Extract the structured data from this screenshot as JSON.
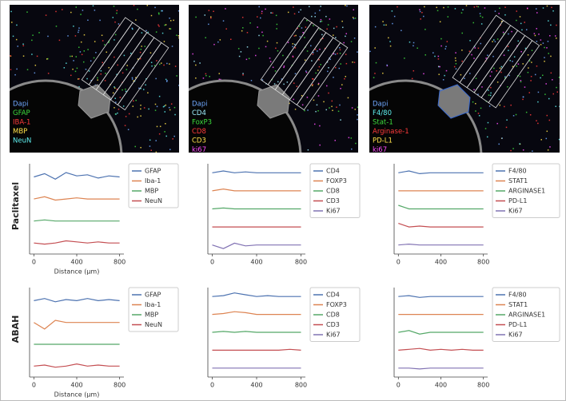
{
  "row_labels": [
    "Paclitaxel",
    "ABAH"
  ],
  "images": [
    {
      "legend": [
        {
          "text": "Dapi",
          "color": "#6fa8ff"
        },
        {
          "text": "GFAP",
          "color": "#3ddc3d"
        },
        {
          "text": "IBA-1",
          "color": "#ff3b3b"
        },
        {
          "text": "MBP",
          "color": "#ffe14a"
        },
        {
          "text": "NeuN",
          "color": "#5ff0f0"
        }
      ]
    },
    {
      "legend": [
        {
          "text": "Dapi",
          "color": "#6fa8ff"
        },
        {
          "text": "CD4",
          "color": "#9ff0ff"
        },
        {
          "text": "FoxP3",
          "color": "#3ddc3d"
        },
        {
          "text": "CD8",
          "color": "#ff3b3b"
        },
        {
          "text": "CD3",
          "color": "#ffe14a"
        },
        {
          "text": "ki67",
          "color": "#ff4dff"
        }
      ]
    },
    {
      "legend": [
        {
          "text": "Dapi",
          "color": "#6fa8ff"
        },
        {
          "text": "F4/80",
          "color": "#5ff0f0"
        },
        {
          "text": "Stat-1",
          "color": "#3ddc3d"
        },
        {
          "text": "Arginase-1",
          "color": "#ff3b3b"
        },
        {
          "text": "PD-L1",
          "color": "#ffe14a"
        },
        {
          "text": "ki67",
          "color": "#ff4dff"
        }
      ]
    }
  ],
  "chart_data": [
    {
      "type": "line",
      "x": [
        0,
        100,
        200,
        300,
        400,
        500,
        600,
        700,
        800
      ],
      "xlim": [
        -40,
        840
      ],
      "xticks": [
        0,
        400,
        800
      ],
      "ylim": [
        0.5,
        4.6
      ],
      "xlabel": "Distance (μm)",
      "series": [
        {
          "name": "GFAP",
          "color": "#4c72b0",
          "values": [
            4.0,
            4.15,
            3.9,
            4.2,
            4.05,
            4.1,
            3.95,
            4.05,
            4.0
          ]
        },
        {
          "name": "Iba-1",
          "color": "#dd8452",
          "values": [
            3.0,
            3.1,
            2.95,
            3.0,
            3.05,
            3.0,
            3.0,
            3.0,
            3.0
          ]
        },
        {
          "name": "MBP",
          "color": "#55a868",
          "values": [
            2.0,
            2.05,
            2.0,
            2.0,
            2.0,
            2.0,
            2.0,
            2.0,
            2.0
          ]
        },
        {
          "name": "NeuN",
          "color": "#c44e52",
          "values": [
            1.0,
            0.95,
            1.0,
            1.1,
            1.05,
            1.0,
            1.05,
            1.0,
            1.0
          ]
        }
      ]
    },
    {
      "type": "line",
      "x": [
        0,
        100,
        200,
        300,
        400,
        500,
        600,
        700,
        800
      ],
      "xlim": [
        -40,
        840
      ],
      "xticks": [
        0,
        400,
        800
      ],
      "ylim": [
        0.5,
        5.5
      ],
      "series": [
        {
          "name": "CD4",
          "color": "#4c72b0",
          "values": [
            5.0,
            5.1,
            5.0,
            5.05,
            5.0,
            5.0,
            5.0,
            5.0,
            5.0
          ]
        },
        {
          "name": "FOXP3",
          "color": "#dd8452",
          "values": [
            4.0,
            4.1,
            4.0,
            4.0,
            4.0,
            4.0,
            4.0,
            4.0,
            4.0
          ]
        },
        {
          "name": "CD8",
          "color": "#55a868",
          "values": [
            3.0,
            3.05,
            3.0,
            3.0,
            3.0,
            3.0,
            3.0,
            3.0,
            3.0
          ]
        },
        {
          "name": "CD3",
          "color": "#c44e52",
          "values": [
            2.0,
            2.0,
            2.0,
            2.0,
            2.0,
            2.0,
            2.0,
            2.0,
            2.0
          ]
        },
        {
          "name": "Ki67",
          "color": "#8172b3",
          "values": [
            1.0,
            0.8,
            1.1,
            0.95,
            1.0,
            1.0,
            1.0,
            1.0,
            1.0
          ]
        }
      ]
    },
    {
      "type": "line",
      "x": [
        0,
        100,
        200,
        300,
        400,
        500,
        600,
        700,
        800
      ],
      "xlim": [
        -40,
        840
      ],
      "xticks": [
        0,
        400,
        800
      ],
      "ylim": [
        0.5,
        5.5
      ],
      "series": [
        {
          "name": "F4/80",
          "color": "#4c72b0",
          "values": [
            5.0,
            5.1,
            4.95,
            5.0,
            5.0,
            5.0,
            5.0,
            5.0,
            5.0
          ]
        },
        {
          "name": "STAT1",
          "color": "#dd8452",
          "values": [
            4.0,
            4.0,
            4.0,
            4.0,
            4.0,
            4.0,
            4.0,
            4.0,
            4.0
          ]
        },
        {
          "name": "ARGINASE1",
          "color": "#55a868",
          "values": [
            3.2,
            3.0,
            3.0,
            3.0,
            3.0,
            3.0,
            3.0,
            3.0,
            3.0
          ]
        },
        {
          "name": "PD-L1",
          "color": "#c44e52",
          "values": [
            2.2,
            2.0,
            2.05,
            2.0,
            2.0,
            2.0,
            2.0,
            2.0,
            2.0
          ]
        },
        {
          "name": "Ki67",
          "color": "#8172b3",
          "values": [
            1.0,
            1.05,
            1.0,
            1.0,
            1.0,
            1.0,
            1.0,
            1.0,
            1.0
          ]
        }
      ]
    },
    {
      "type": "line",
      "x": [
        0,
        100,
        200,
        300,
        400,
        500,
        600,
        700,
        800
      ],
      "xlim": [
        -40,
        840
      ],
      "xticks": [
        0,
        400,
        800
      ],
      "ylim": [
        0.5,
        4.6
      ],
      "xlabel": "Distance (μm)",
      "series": [
        {
          "name": "GFAP",
          "color": "#4c72b0",
          "values": [
            4.0,
            4.1,
            3.95,
            4.05,
            4.0,
            4.1,
            4.0,
            4.05,
            4.0
          ]
        },
        {
          "name": "Iba-1",
          "color": "#dd8452",
          "values": [
            3.0,
            2.7,
            3.1,
            3.0,
            3.0,
            3.0,
            3.0,
            3.0,
            3.0
          ]
        },
        {
          "name": "MBP",
          "color": "#55a868",
          "values": [
            2.0,
            2.0,
            2.0,
            2.0,
            2.0,
            2.0,
            2.0,
            2.0,
            2.0
          ]
        },
        {
          "name": "NeuN",
          "color": "#c44e52",
          "values": [
            1.0,
            1.05,
            0.95,
            1.0,
            1.1,
            1.0,
            1.05,
            1.0,
            1.0
          ]
        }
      ]
    },
    {
      "type": "line",
      "x": [
        0,
        100,
        200,
        300,
        400,
        500,
        600,
        700,
        800
      ],
      "xlim": [
        -40,
        840
      ],
      "xticks": [
        0,
        400,
        800
      ],
      "ylim": [
        0.5,
        5.5
      ],
      "series": [
        {
          "name": "CD4",
          "color": "#4c72b0",
          "values": [
            5.0,
            5.05,
            5.2,
            5.1,
            5.0,
            5.05,
            5.0,
            5.0,
            5.0
          ]
        },
        {
          "name": "FOXP3",
          "color": "#dd8452",
          "values": [
            4.0,
            4.05,
            4.15,
            4.1,
            4.0,
            4.0,
            4.0,
            4.0,
            4.0
          ]
        },
        {
          "name": "CD8",
          "color": "#55a868",
          "values": [
            3.0,
            3.05,
            3.0,
            3.05,
            3.0,
            3.0,
            3.0,
            3.0,
            3.0
          ]
        },
        {
          "name": "CD3",
          "color": "#c44e52",
          "values": [
            2.0,
            2.0,
            2.0,
            2.0,
            2.0,
            2.0,
            2.0,
            2.05,
            2.0
          ]
        },
        {
          "name": "Ki67",
          "color": "#8172b3",
          "values": [
            1.0,
            1.0,
            1.0,
            1.0,
            1.0,
            1.0,
            1.0,
            1.0,
            1.0
          ]
        }
      ]
    },
    {
      "type": "line",
      "x": [
        0,
        100,
        200,
        300,
        400,
        500,
        600,
        700,
        800
      ],
      "xlim": [
        -40,
        840
      ],
      "xticks": [
        0,
        400,
        800
      ],
      "ylim": [
        0.5,
        5.5
      ],
      "series": [
        {
          "name": "F4/80",
          "color": "#4c72b0",
          "values": [
            5.0,
            5.05,
            4.95,
            5.0,
            5.0,
            5.0,
            5.0,
            5.0,
            5.0
          ]
        },
        {
          "name": "STAT1",
          "color": "#dd8452",
          "values": [
            4.0,
            4.0,
            4.0,
            4.0,
            4.0,
            4.0,
            4.0,
            4.0,
            4.0
          ]
        },
        {
          "name": "ARGINASE1",
          "color": "#55a868",
          "values": [
            3.0,
            3.1,
            2.9,
            3.0,
            3.0,
            3.0,
            3.0,
            3.0,
            3.0
          ]
        },
        {
          "name": "PD-L1",
          "color": "#c44e52",
          "values": [
            2.0,
            2.05,
            2.1,
            2.0,
            2.05,
            2.0,
            2.05,
            2.0,
            2.0
          ]
        },
        {
          "name": "Ki67",
          "color": "#8172b3",
          "values": [
            1.0,
            1.0,
            0.95,
            1.0,
            1.0,
            1.0,
            1.0,
            1.0,
            1.0
          ]
        }
      ]
    }
  ]
}
